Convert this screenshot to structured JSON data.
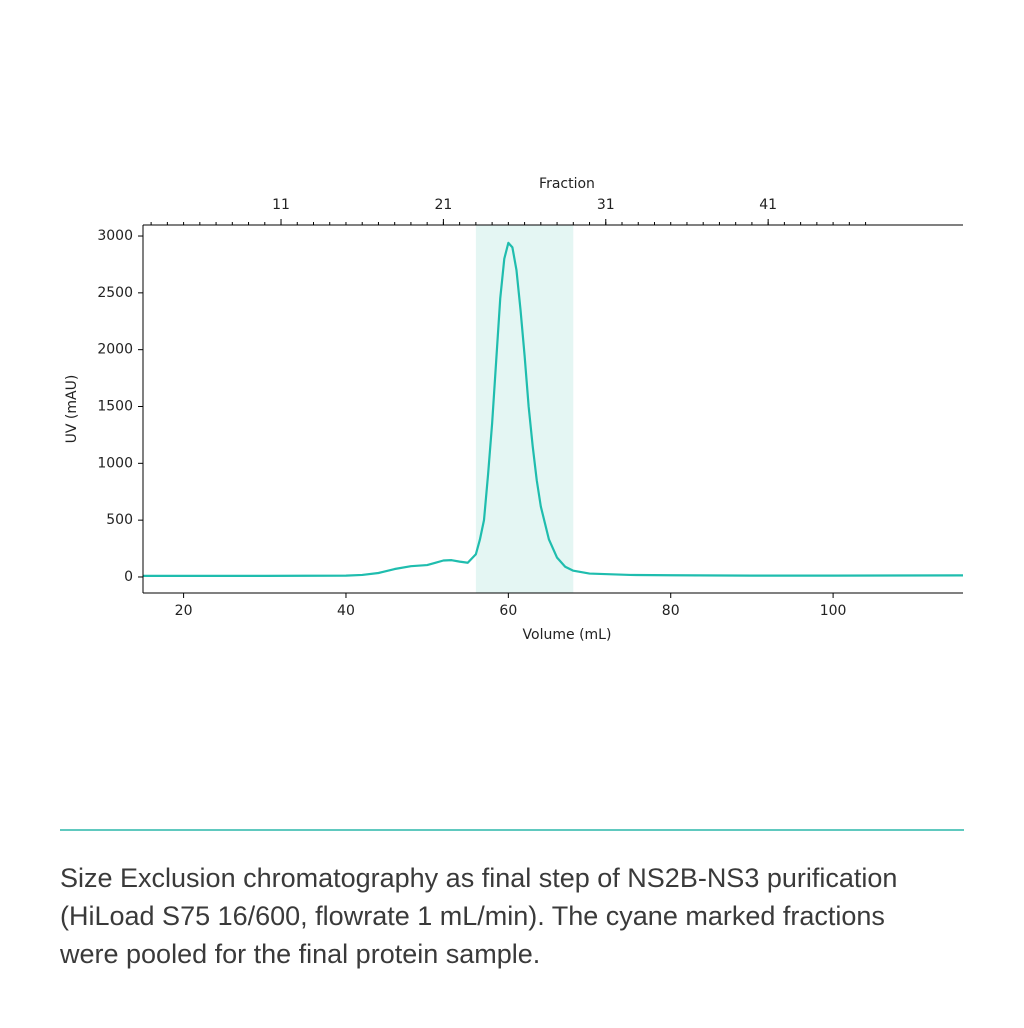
{
  "chart_data": {
    "type": "line",
    "xlabel": "Volume (mL)",
    "ylabel": "UV (mAU)",
    "x2label": "Fraction",
    "x": [
      15,
      20,
      30,
      40,
      42,
      44,
      46,
      48,
      50,
      51,
      52,
      53,
      54,
      55,
      56,
      56.5,
      57,
      57.5,
      58,
      58.5,
      59,
      59.5,
      60,
      60.5,
      61,
      61.5,
      62,
      62.5,
      63,
      63.5,
      64,
      65,
      66,
      67,
      68,
      70,
      75,
      80,
      90,
      100,
      116
    ],
    "series": [
      {
        "color": "#1fbdae",
        "values": [
          10,
          10,
          10,
          12,
          18,
          35,
          70,
          95,
          105,
          125,
          145,
          148,
          135,
          125,
          200,
          330,
          500,
          900,
          1350,
          1900,
          2450,
          2800,
          2940,
          2900,
          2700,
          2350,
          1950,
          1500,
          1150,
          850,
          620,
          330,
          170,
          90,
          55,
          30,
          18,
          15,
          12,
          12,
          14
        ]
      }
    ],
    "xlim": [
      15,
      116
    ],
    "ylim": [
      -141,
      3097
    ],
    "xticks": [
      20,
      40,
      60,
      80,
      100
    ],
    "yticks": [
      0,
      500,
      1000,
      1500,
      2000,
      2500,
      3000
    ],
    "x2ticks": [
      {
        "value": 32,
        "label": "11"
      },
      {
        "value": 52,
        "label": "21"
      },
      {
        "value": 72,
        "label": "31"
      },
      {
        "value": 92,
        "label": "41"
      }
    ],
    "x2minorticks": [
      16,
      18,
      20,
      22,
      24,
      26,
      28,
      30,
      32,
      34,
      36,
      38,
      40,
      42,
      44,
      46,
      48,
      50,
      52,
      54,
      56,
      58,
      60,
      62,
      64,
      66,
      68,
      70,
      72,
      74,
      76,
      78,
      80,
      82,
      84,
      86,
      88,
      90,
      92,
      94,
      96,
      98,
      100,
      102,
      104
    ],
    "highlight": {
      "xrange": [
        56,
        68
      ],
      "color": "#e4f6f3"
    }
  },
  "caption": {
    "lines": [
      "Size Exclusion chromatography as final step of NS2B-NS3 purification",
      "(HiLoad S75 16/600, flowrate 1 mL/min). The cyane marked fractions",
      "were pooled for the final protein sample."
    ]
  }
}
